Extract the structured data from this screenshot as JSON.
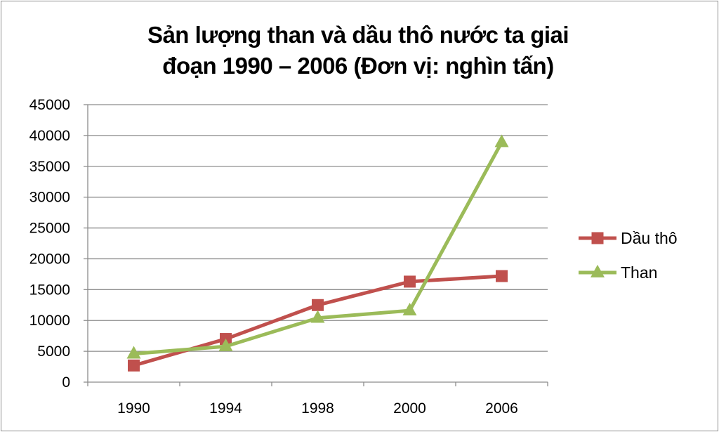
{
  "chart_data": {
    "type": "line",
    "title_lines": [
      "Sản lượng than và dầu thô nước ta giai",
      "đoạn 1990 – 2006 (Đơn vị: nghìn tấn)"
    ],
    "categories": [
      "1990",
      "1994",
      "1998",
      "2000",
      "2006"
    ],
    "ylim": [
      0,
      45000
    ],
    "yticks": [
      "0",
      "5000",
      "10000",
      "15000",
      "20000",
      "25000",
      "30000",
      "35000",
      "40000",
      "45000"
    ],
    "grid": true,
    "legend_position": "right",
    "series": [
      {
        "name": "Dầu thô",
        "values": [
          2700,
          7000,
          12500,
          16300,
          17200
        ],
        "color": "#c0504d",
        "marker": "square"
      },
      {
        "name": "Than",
        "values": [
          4600,
          5800,
          10400,
          11600,
          38900
        ],
        "color": "#9bbb59",
        "marker": "triangle"
      }
    ]
  }
}
